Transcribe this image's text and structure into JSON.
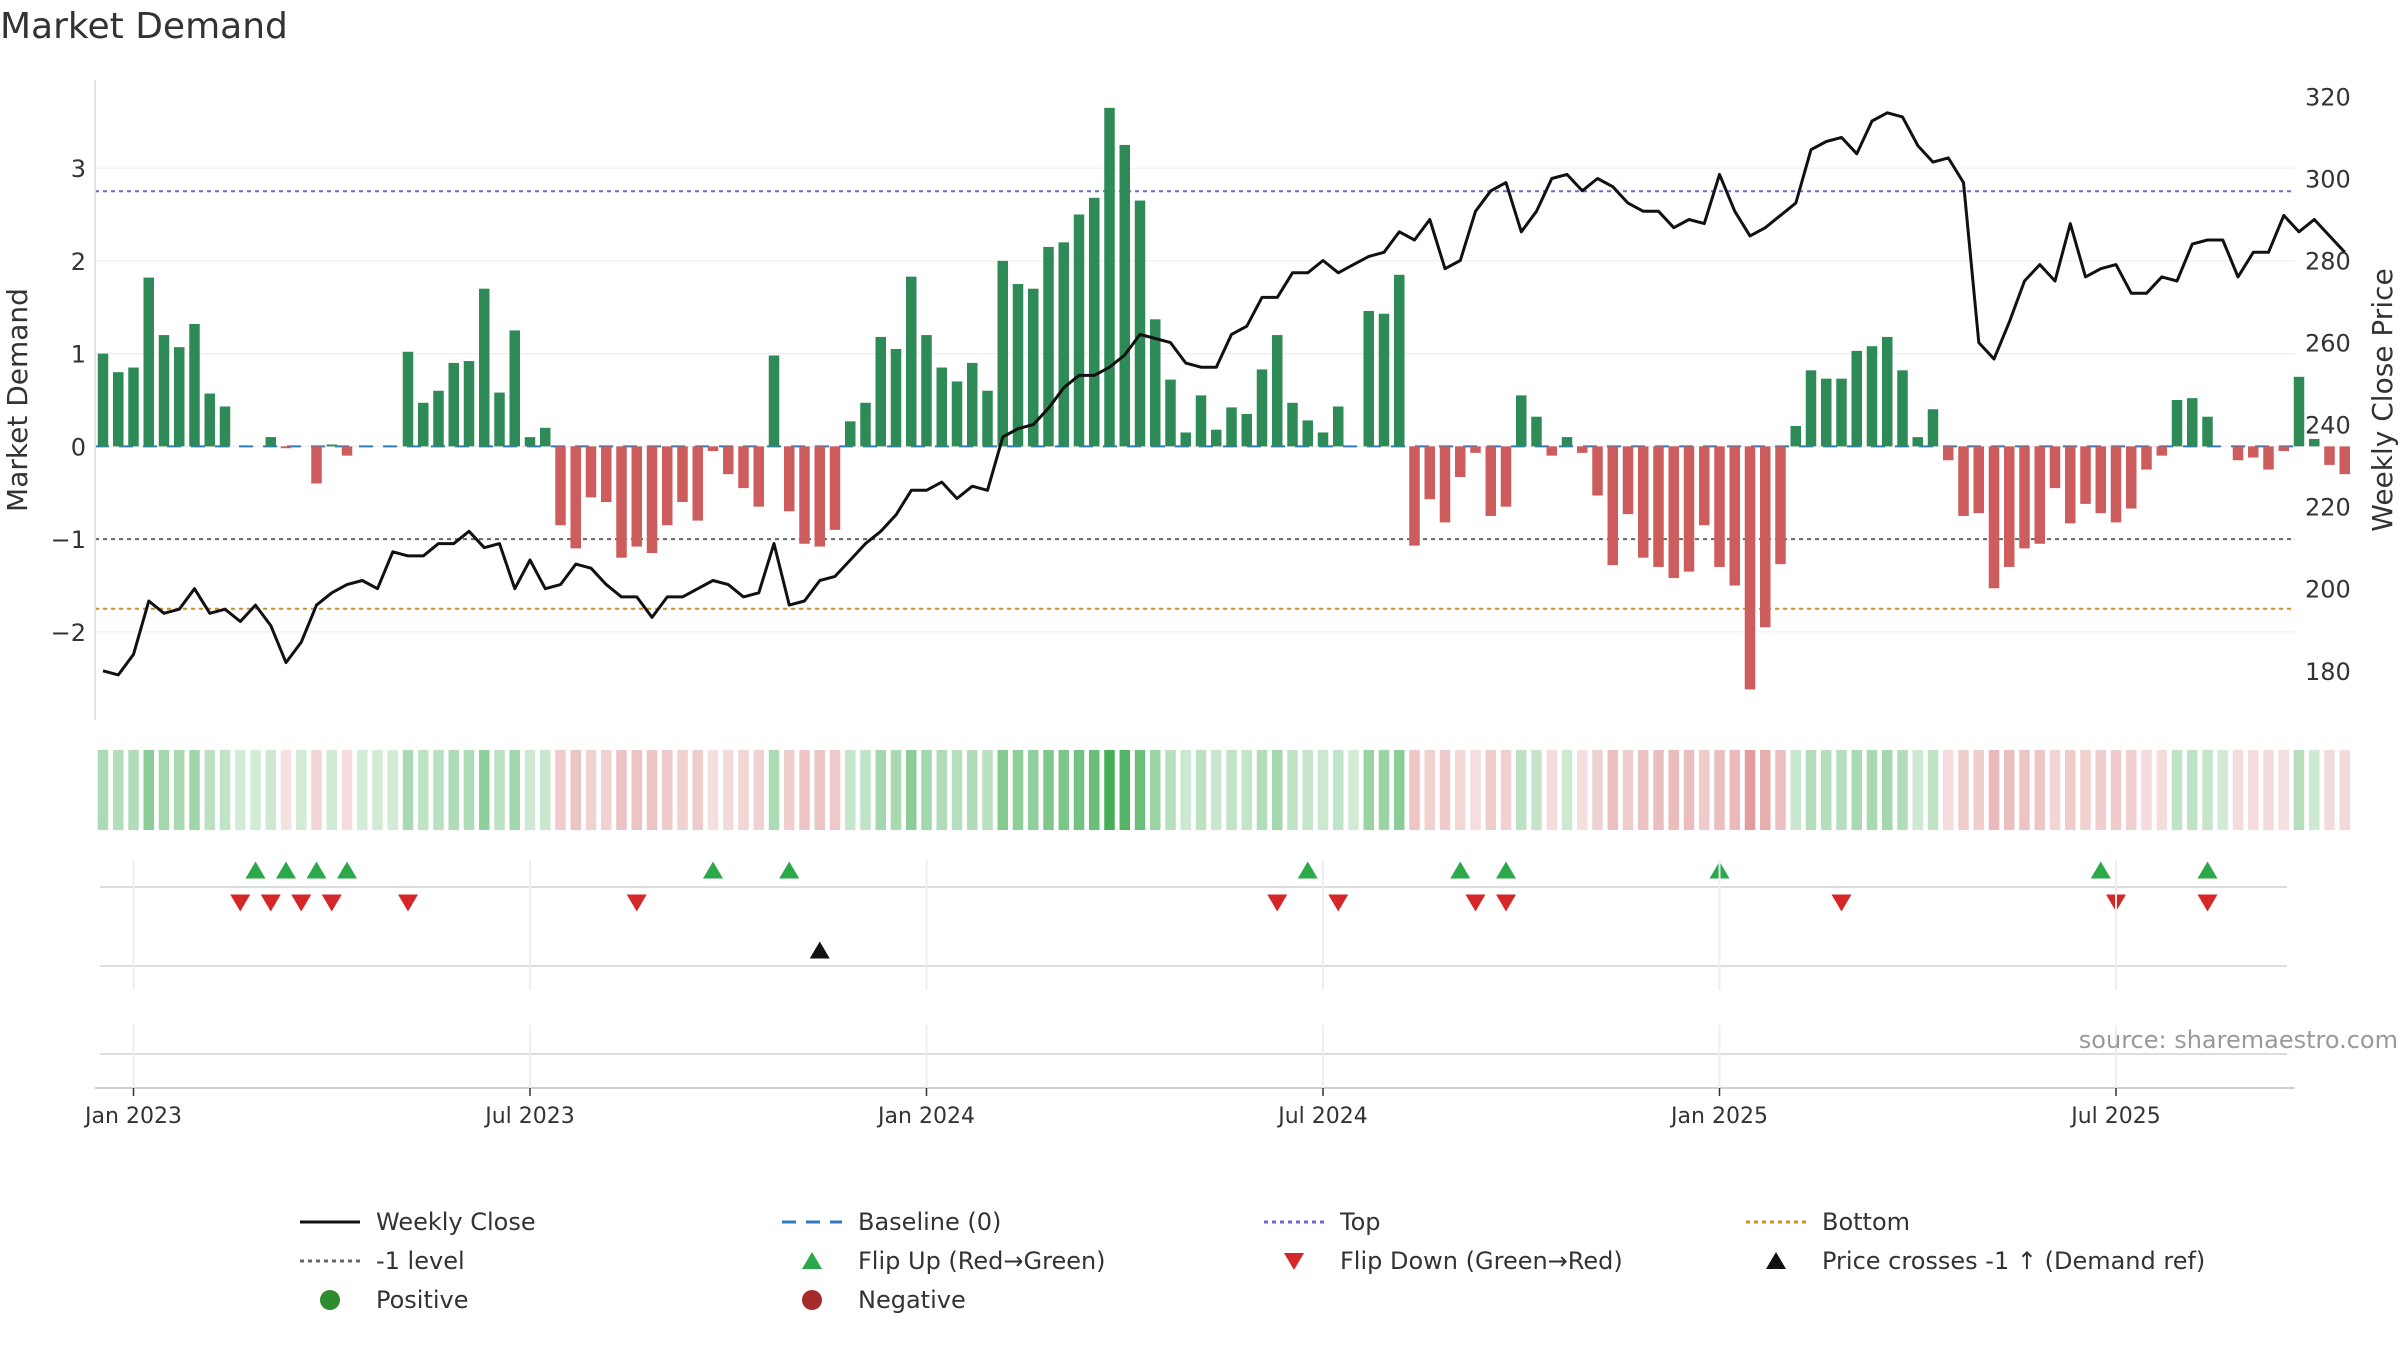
{
  "title": "Market Demand",
  "source": "source: sharemaestro.com",
  "chart_data": {
    "type": "bar+line",
    "title": "Market Demand",
    "left_axis": {
      "label": "Market Demand",
      "ylim": [
        -2.95,
        3.95
      ],
      "ticks": [
        -2,
        -1,
        0,
        1,
        2,
        3
      ]
    },
    "right_axis": {
      "label": "Weekly Close Price",
      "ylim": [
        168,
        324
      ],
      "ticks": [
        180,
        200,
        220,
        240,
        260,
        280,
        300,
        320
      ]
    },
    "x_axis": {
      "tick_labels": [
        "Jan 2023",
        "Jul 2023",
        "Jan 2024",
        "Jul 2024",
        "Jan 2025",
        "Jul 2025"
      ],
      "tick_weeks": [
        0,
        26,
        52,
        78,
        104,
        130
      ]
    },
    "start_offset_weeks": -2,
    "reference_lines": {
      "top": 2.75,
      "bottom": -1.75,
      "minus_one": -1,
      "baseline": 0
    },
    "demand": [
      1.0,
      0.8,
      0.85,
      1.82,
      1.2,
      1.07,
      1.32,
      0.57,
      0.43,
      0.0,
      0.0,
      0.1,
      -0.02,
      0.0,
      -0.4,
      0.02,
      -0.1,
      0.0,
      0.0,
      0.0,
      1.02,
      0.47,
      0.6,
      0.9,
      0.92,
      1.7,
      0.58,
      1.25,
      0.1,
      0.2,
      -0.85,
      -1.1,
      -0.55,
      -0.6,
      -1.2,
      -1.08,
      -1.15,
      -0.85,
      -0.6,
      -0.8,
      -0.05,
      -0.3,
      -0.45,
      -0.65,
      0.98,
      -0.7,
      -1.05,
      -1.08,
      -0.9,
      0.27,
      0.47,
      1.18,
      1.05,
      1.83,
      1.2,
      0.85,
      0.7,
      0.9,
      0.6,
      2.0,
      1.75,
      1.7,
      2.15,
      2.2,
      2.5,
      2.68,
      3.65,
      3.25,
      2.65,
      1.37,
      0.72,
      0.15,
      0.55,
      0.18,
      0.42,
      0.35,
      0.83,
      1.2,
      0.47,
      0.28,
      0.15,
      0.43,
      0.0,
      1.46,
      1.43,
      1.85,
      -1.07,
      -0.57,
      -0.82,
      -0.33,
      -0.07,
      -0.75,
      -0.65,
      0.55,
      0.32,
      -0.1,
      0.1,
      -0.07,
      -0.53,
      -1.28,
      -0.73,
      -1.2,
      -1.3,
      -1.42,
      -1.35,
      -0.85,
      -1.3,
      -1.5,
      -2.62,
      -1.95,
      -1.27,
      0.22,
      0.82,
      0.73,
      0.73,
      1.03,
      1.08,
      1.18,
      0.82,
      0.1,
      0.4,
      -0.15,
      -0.75,
      -0.72,
      -1.53,
      -1.3,
      -1.1,
      -1.05,
      -0.45,
      -0.83,
      -0.62,
      -0.72,
      -0.82,
      -0.67,
      -0.25,
      -0.1,
      0.5,
      0.52,
      0.32,
      0.0,
      -0.15,
      -0.12,
      -0.25,
      -0.05,
      0.75,
      0.08,
      -0.2,
      -0.3
    ],
    "weekly_close": [
      180,
      179,
      184,
      197,
      194,
      195,
      200,
      194,
      195,
      192,
      196,
      191,
      182,
      187,
      196,
      199,
      201,
      202,
      200,
      209,
      208,
      208,
      211,
      211,
      214,
      210,
      211,
      200,
      207,
      200,
      201,
      206,
      205,
      201,
      198,
      198,
      193,
      198,
      198,
      200,
      202,
      201,
      198,
      199,
      211,
      196,
      197,
      202,
      203,
      207,
      211,
      214,
      218,
      224,
      224,
      226,
      222,
      225,
      224,
      237,
      239,
      240,
      244,
      249,
      252,
      252,
      254,
      257,
      262,
      261,
      260,
      255,
      254,
      254,
      262,
      264,
      271,
      271,
      277,
      277,
      280,
      277,
      279,
      281,
      282,
      287,
      285,
      290,
      278,
      280,
      292,
      297,
      299,
      287,
      292,
      300,
      301,
      297,
      300,
      298,
      294,
      292,
      292,
      288,
      290,
      289,
      301,
      292,
      286,
      288,
      291,
      294,
      307,
      309,
      310,
      306,
      314,
      316,
      315,
      308,
      304,
      305,
      299,
      260,
      256,
      265,
      275,
      279,
      275,
      289,
      276,
      278,
      279,
      272,
      272,
      276,
      275,
      284,
      285,
      285,
      276,
      282,
      282,
      291,
      287,
      290,
      286,
      282
    ],
    "flip_up_weeks": [
      10,
      12,
      14,
      16,
      40,
      45,
      79,
      89,
      92,
      106,
      131,
      138
    ],
    "flip_down_weeks": [
      9,
      11,
      13,
      15,
      20,
      35,
      77,
      81,
      90,
      92,
      114,
      132,
      138
    ],
    "price_cross_weeks": [
      47
    ],
    "legend": [
      {
        "label": "Weekly Close",
        "kind": "line",
        "color": "#111111",
        "dash": "none"
      },
      {
        "label": "Baseline (0)",
        "kind": "line",
        "color": "#2f7bbd",
        "dash": "dash"
      },
      {
        "label": "Top",
        "kind": "line",
        "color": "#6a6ad0",
        "dash": "dot"
      },
      {
        "label": "Bottom",
        "kind": "line",
        "color": "#d08c20",
        "dash": "dot"
      },
      {
        "label": "-1 level",
        "kind": "line",
        "color": "#666666",
        "dash": "dot"
      },
      {
        "label": "Flip Up (Red→Green)",
        "kind": "tri-up",
        "color": "#2aa84a"
      },
      {
        "label": "Flip Down (Green→Red)",
        "kind": "tri-down",
        "color": "#d62728"
      },
      {
        "label": "Price crosses -1 ↑ (Demand ref)",
        "kind": "tri-up",
        "color": "#111111"
      },
      {
        "label": "Positive",
        "kind": "dot",
        "color": "#2e8b2e"
      },
      {
        "label": "Negative",
        "kind": "dot",
        "color": "#a52a2a"
      }
    ],
    "colors": {
      "positive": "#2e8b57",
      "negative": "#cd5c5c"
    }
  }
}
